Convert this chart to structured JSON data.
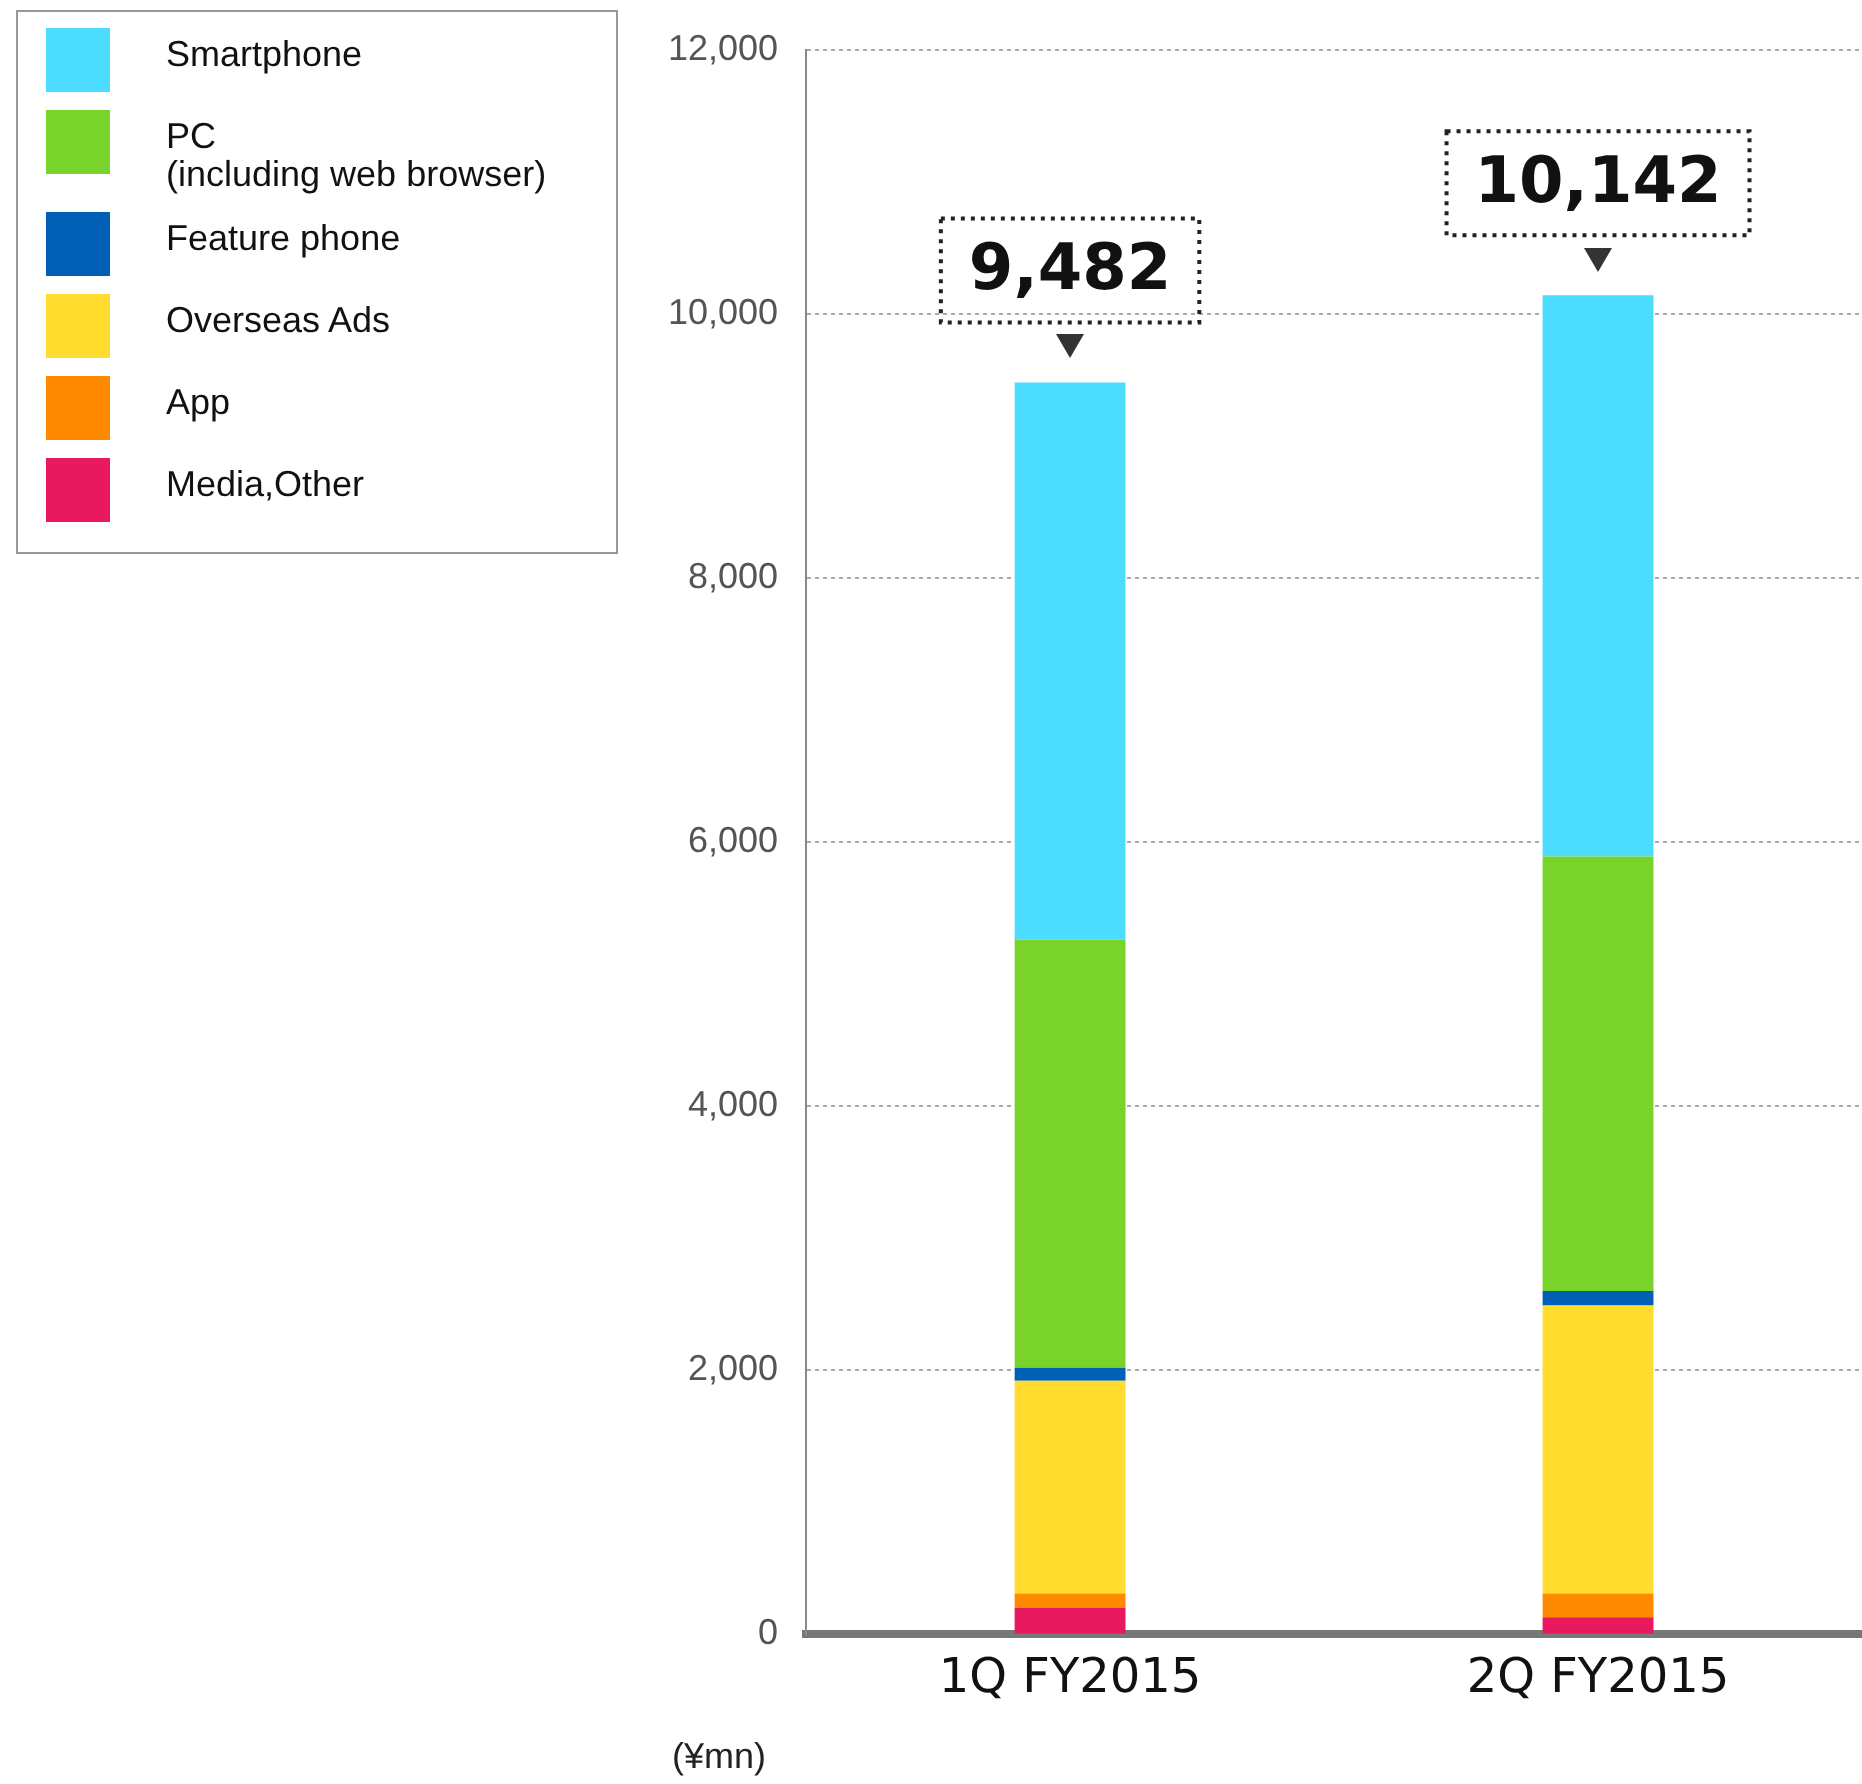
{
  "chart_data": {
    "type": "bar",
    "stacked": true,
    "categories": [
      "1Q FY2015",
      "2Q FY2015"
    ],
    "series": [
      {
        "name": "Media,Other",
        "color": "#e8195f",
        "values": [
          200,
          130
        ]
      },
      {
        "name": "App",
        "color": "#ff8a00",
        "values": [
          110,
          180
        ]
      },
      {
        "name": "Overseas Ads",
        "color": "#ffdc2e",
        "values": [
          1610,
          2180
        ]
      },
      {
        "name": "Feature phone",
        "color": "#0060b6",
        "values": [
          100,
          110
        ]
      },
      {
        "name": "PC\n(including web browser)",
        "color": "#7ad32b",
        "values": [
          3240,
          3290
        ]
      },
      {
        "name": "Smartphone",
        "color": "#4cdcff",
        "values": [
          4220,
          4250
        ]
      }
    ],
    "totals": [
      "9,482",
      "10,142"
    ],
    "ylabel": "(¥mn)",
    "ylim": [
      0,
      12000
    ],
    "yticks": [
      {
        "value": 0,
        "label": "0"
      },
      {
        "value": 2000,
        "label": "2,000"
      },
      {
        "value": 4000,
        "label": "4,000"
      },
      {
        "value": 6000,
        "label": "6,000"
      },
      {
        "value": 8000,
        "label": "8,000"
      },
      {
        "value": 10000,
        "label": "10,000"
      },
      {
        "value": 12000,
        "label": "12,000"
      }
    ],
    "grid": "y",
    "legend": "top left"
  }
}
